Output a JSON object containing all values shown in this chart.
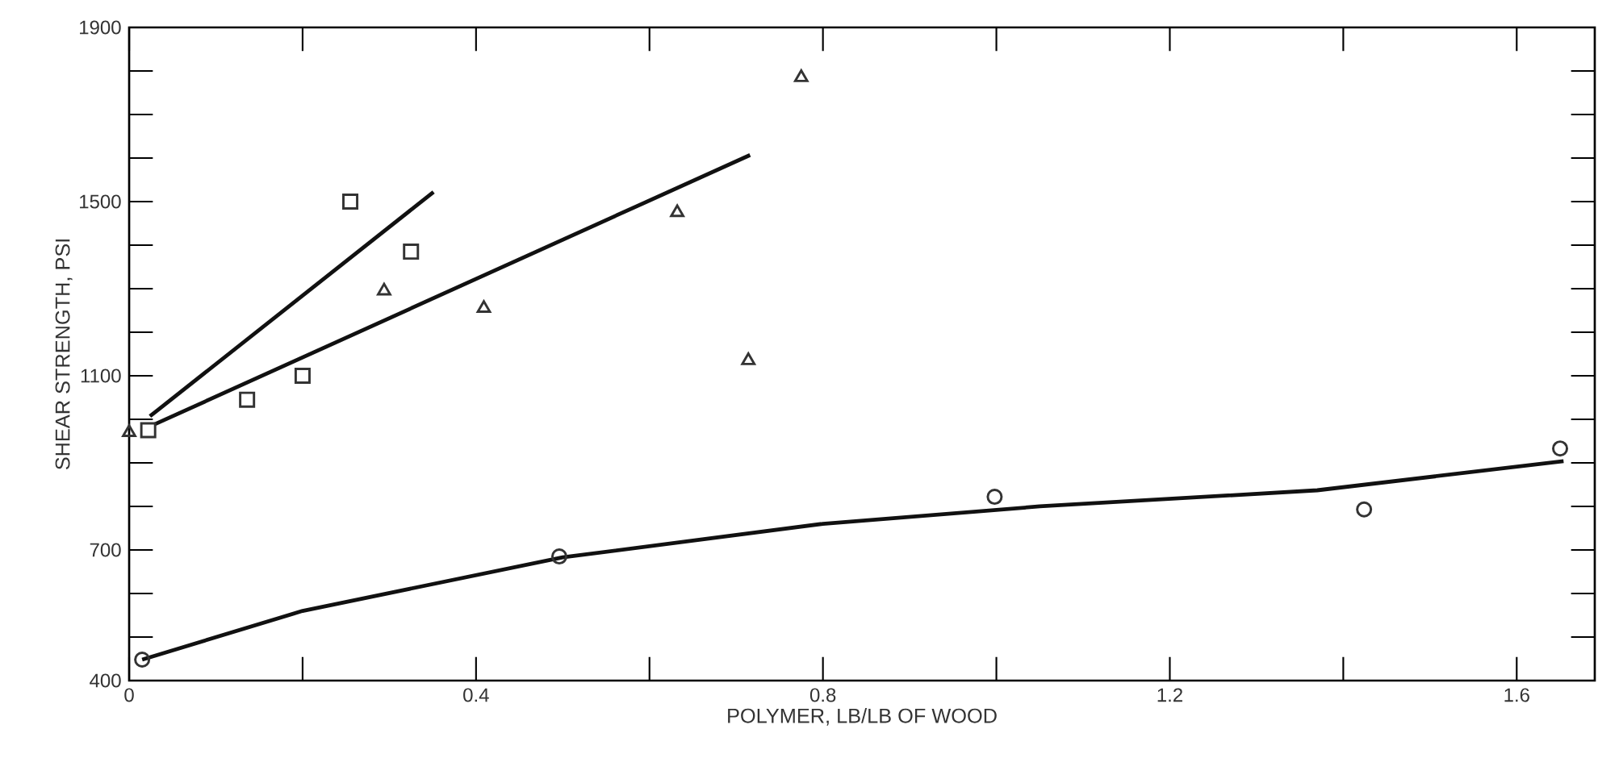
{
  "chart_data": {
    "type": "scatter",
    "xlabel": "POLYMER, LB/LB OF WOOD",
    "ylabel": "SHEAR STRENGTH, PSI",
    "xlim": [
      0,
      1.69
    ],
    "ylim": [
      400,
      1900
    ],
    "xticks": [
      0,
      {
        "value": 0.2,
        "label": null
      },
      0.4,
      {
        "value": 0.6,
        "label": null
      },
      0.8,
      {
        "value": 1.0,
        "label": null
      },
      1.2,
      {
        "value": 1.4,
        "label": null
      },
      1.6
    ],
    "yticks": [
      400,
      {
        "value": 500,
        "label": null
      },
      {
        "value": 600,
        "label": null
      },
      700,
      {
        "value": 800,
        "label": null
      },
      {
        "value": 900,
        "label": null
      },
      {
        "value": 1000,
        "label": null
      },
      1100,
      {
        "value": 1200,
        "label": null
      },
      {
        "value": 1300,
        "label": null
      },
      {
        "value": 1400,
        "label": null
      },
      1500,
      {
        "value": 1600,
        "label": null
      },
      {
        "value": 1700,
        "label": null
      },
      {
        "value": 1800,
        "label": null
      },
      1900
    ],
    "grid": false,
    "series": [
      {
        "marker": "square",
        "color": "#333333",
        "x": [
          0.022,
          0.136,
          0.2,
          0.255,
          0.325
        ],
        "values": [
          975,
          1045,
          1100,
          1500,
          1385
        ]
      },
      {
        "marker": "triangle",
        "color": "#333333",
        "x": [
          0,
          0.294,
          0.409,
          0.632,
          0.714,
          0.775
        ],
        "values": [
          970,
          1295,
          1255,
          1475,
          1135,
          1785
        ]
      },
      {
        "marker": "circle",
        "color": "#333333",
        "x": [
          0.015,
          0.496,
          0.998,
          1.424,
          1.65
        ],
        "values": [
          448,
          685,
          822,
          793,
          933
        ]
      },
      {
        "type": "line",
        "marker": "none",
        "line_style": "solid",
        "color": "#111111",
        "x": [
          0.024,
          0.351
        ],
        "values": [
          1007,
          1522
        ]
      },
      {
        "type": "line",
        "marker": "none",
        "line_style": "solid",
        "color": "#111111",
        "x": [
          0.03,
          0.716
        ],
        "values": [
          989,
          1607
        ]
      },
      {
        "type": "line",
        "marker": "none",
        "line_style": "solid",
        "color": "#111111",
        "x": [
          0.015,
          0.2,
          0.5,
          0.8,
          1.05,
          1.37,
          1.654
        ],
        "values": [
          448,
          560,
          683,
          760,
          800,
          837,
          904
        ]
      }
    ]
  }
}
